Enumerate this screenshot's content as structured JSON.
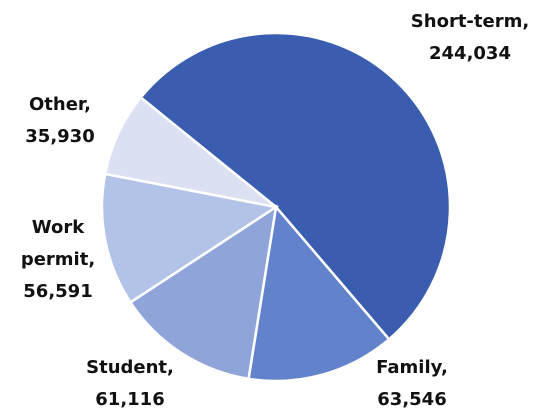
{
  "chart_data": {
    "type": "pie",
    "categories": [
      "Short-term,",
      "Family,",
      "Student,",
      "Work permit,",
      "Other,"
    ],
    "values": [
      244034,
      63546,
      61116,
      56591,
      35930
    ],
    "value_labels": [
      "244,034",
      "63,546",
      "61,116",
      "56,591",
      "35,930"
    ],
    "colors": [
      "#3a5db0",
      "#6283cb",
      "#8fa5d9",
      "#b3c3e8",
      "#dbe1f3"
    ]
  }
}
